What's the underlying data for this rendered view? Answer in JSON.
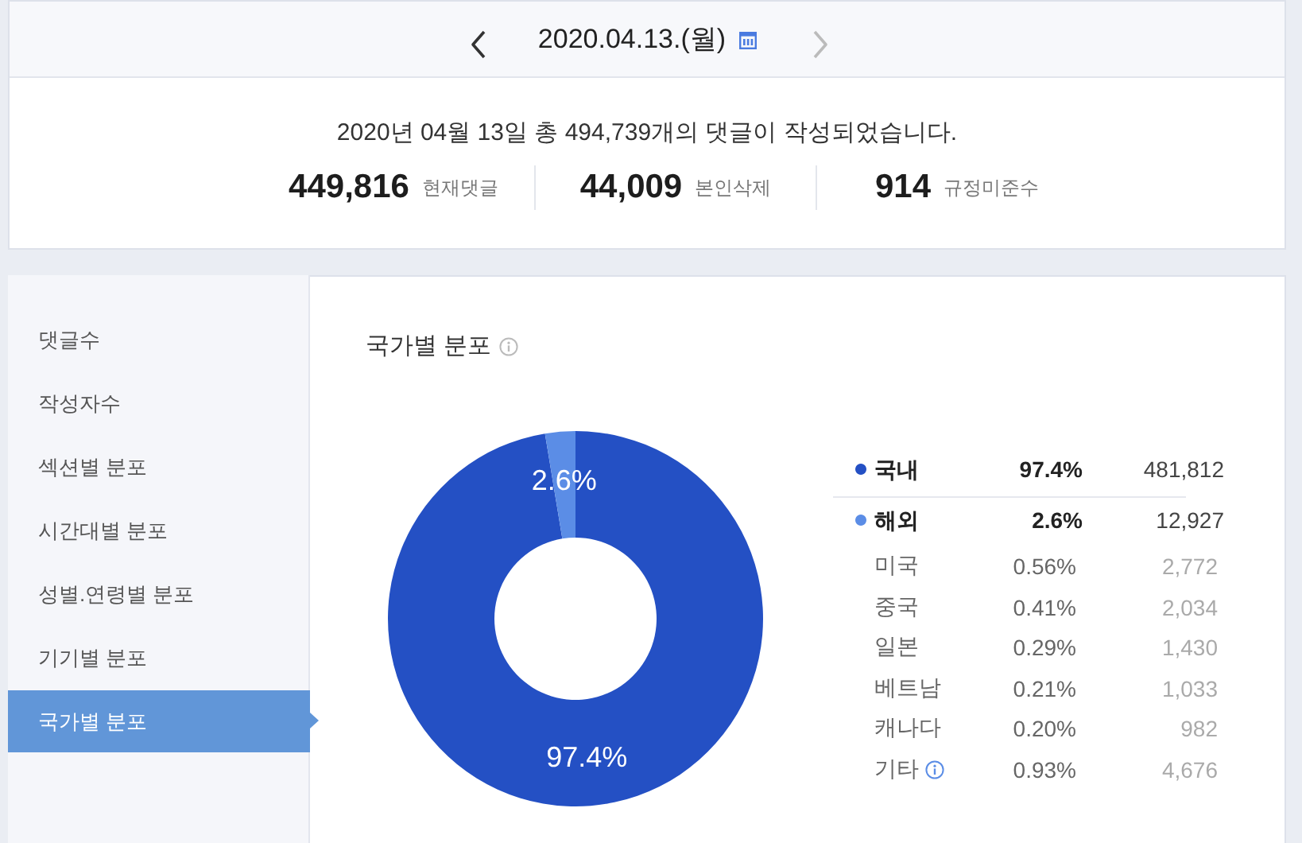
{
  "chart_data": [
    {
      "type": "other",
      "title": "2020.04.13.(월)",
      "subtitle": "2020년 04월 13일 총 494,739개의 댓글이 작성되었습니다.",
      "categories": [
        "현재댓글",
        "본인삭제",
        "규정미준수"
      ],
      "value_labels": [
        "449,816",
        "44,009",
        "914"
      ]
    },
    {
      "type": "other",
      "annotations": [
        "댓글수",
        "작성자수",
        "섹션별 분포",
        "시간대별 분포",
        "성별.연령별 분포",
        "기기별 분포",
        "국가별 분포"
      ]
    },
    {
      "type": "donut",
      "title": "국가별 분포",
      "categories": [
        "국내",
        "해외"
      ],
      "values": [
        97.4,
        2.6
      ],
      "value_labels": [
        "97.4%",
        "2.6%"
      ],
      "colors": [
        "#2450c4",
        "#5b8de6"
      ],
      "legend": "right",
      "annotations": [
        {
          "text": "481,812",
          "x": "국내"
        },
        {
          "text": "12,927",
          "x": "해외"
        }
      ]
    },
    {
      "type": "other",
      "categories": [
        "미국",
        "중국",
        "일본",
        "베트남",
        "캐나다",
        "기타"
      ],
      "values": [
        0.56,
        0.41,
        0.29,
        0.21,
        0.2,
        0.93
      ],
      "value_labels": [
        "0.56%",
        "0.41%",
        "0.29%",
        "0.21%",
        "0.20%",
        "0.93%"
      ],
      "annotations": [
        {
          "text": "2,772",
          "x": "미국"
        },
        {
          "text": "2,034",
          "x": "중국"
        },
        {
          "text": "1,430",
          "x": "일본"
        },
        {
          "text": "1,033",
          "x": "베트남"
        },
        {
          "text": "982",
          "x": "캐나다"
        },
        {
          "text": "4,676",
          "x": "기타"
        }
      ]
    }
  ]
}
